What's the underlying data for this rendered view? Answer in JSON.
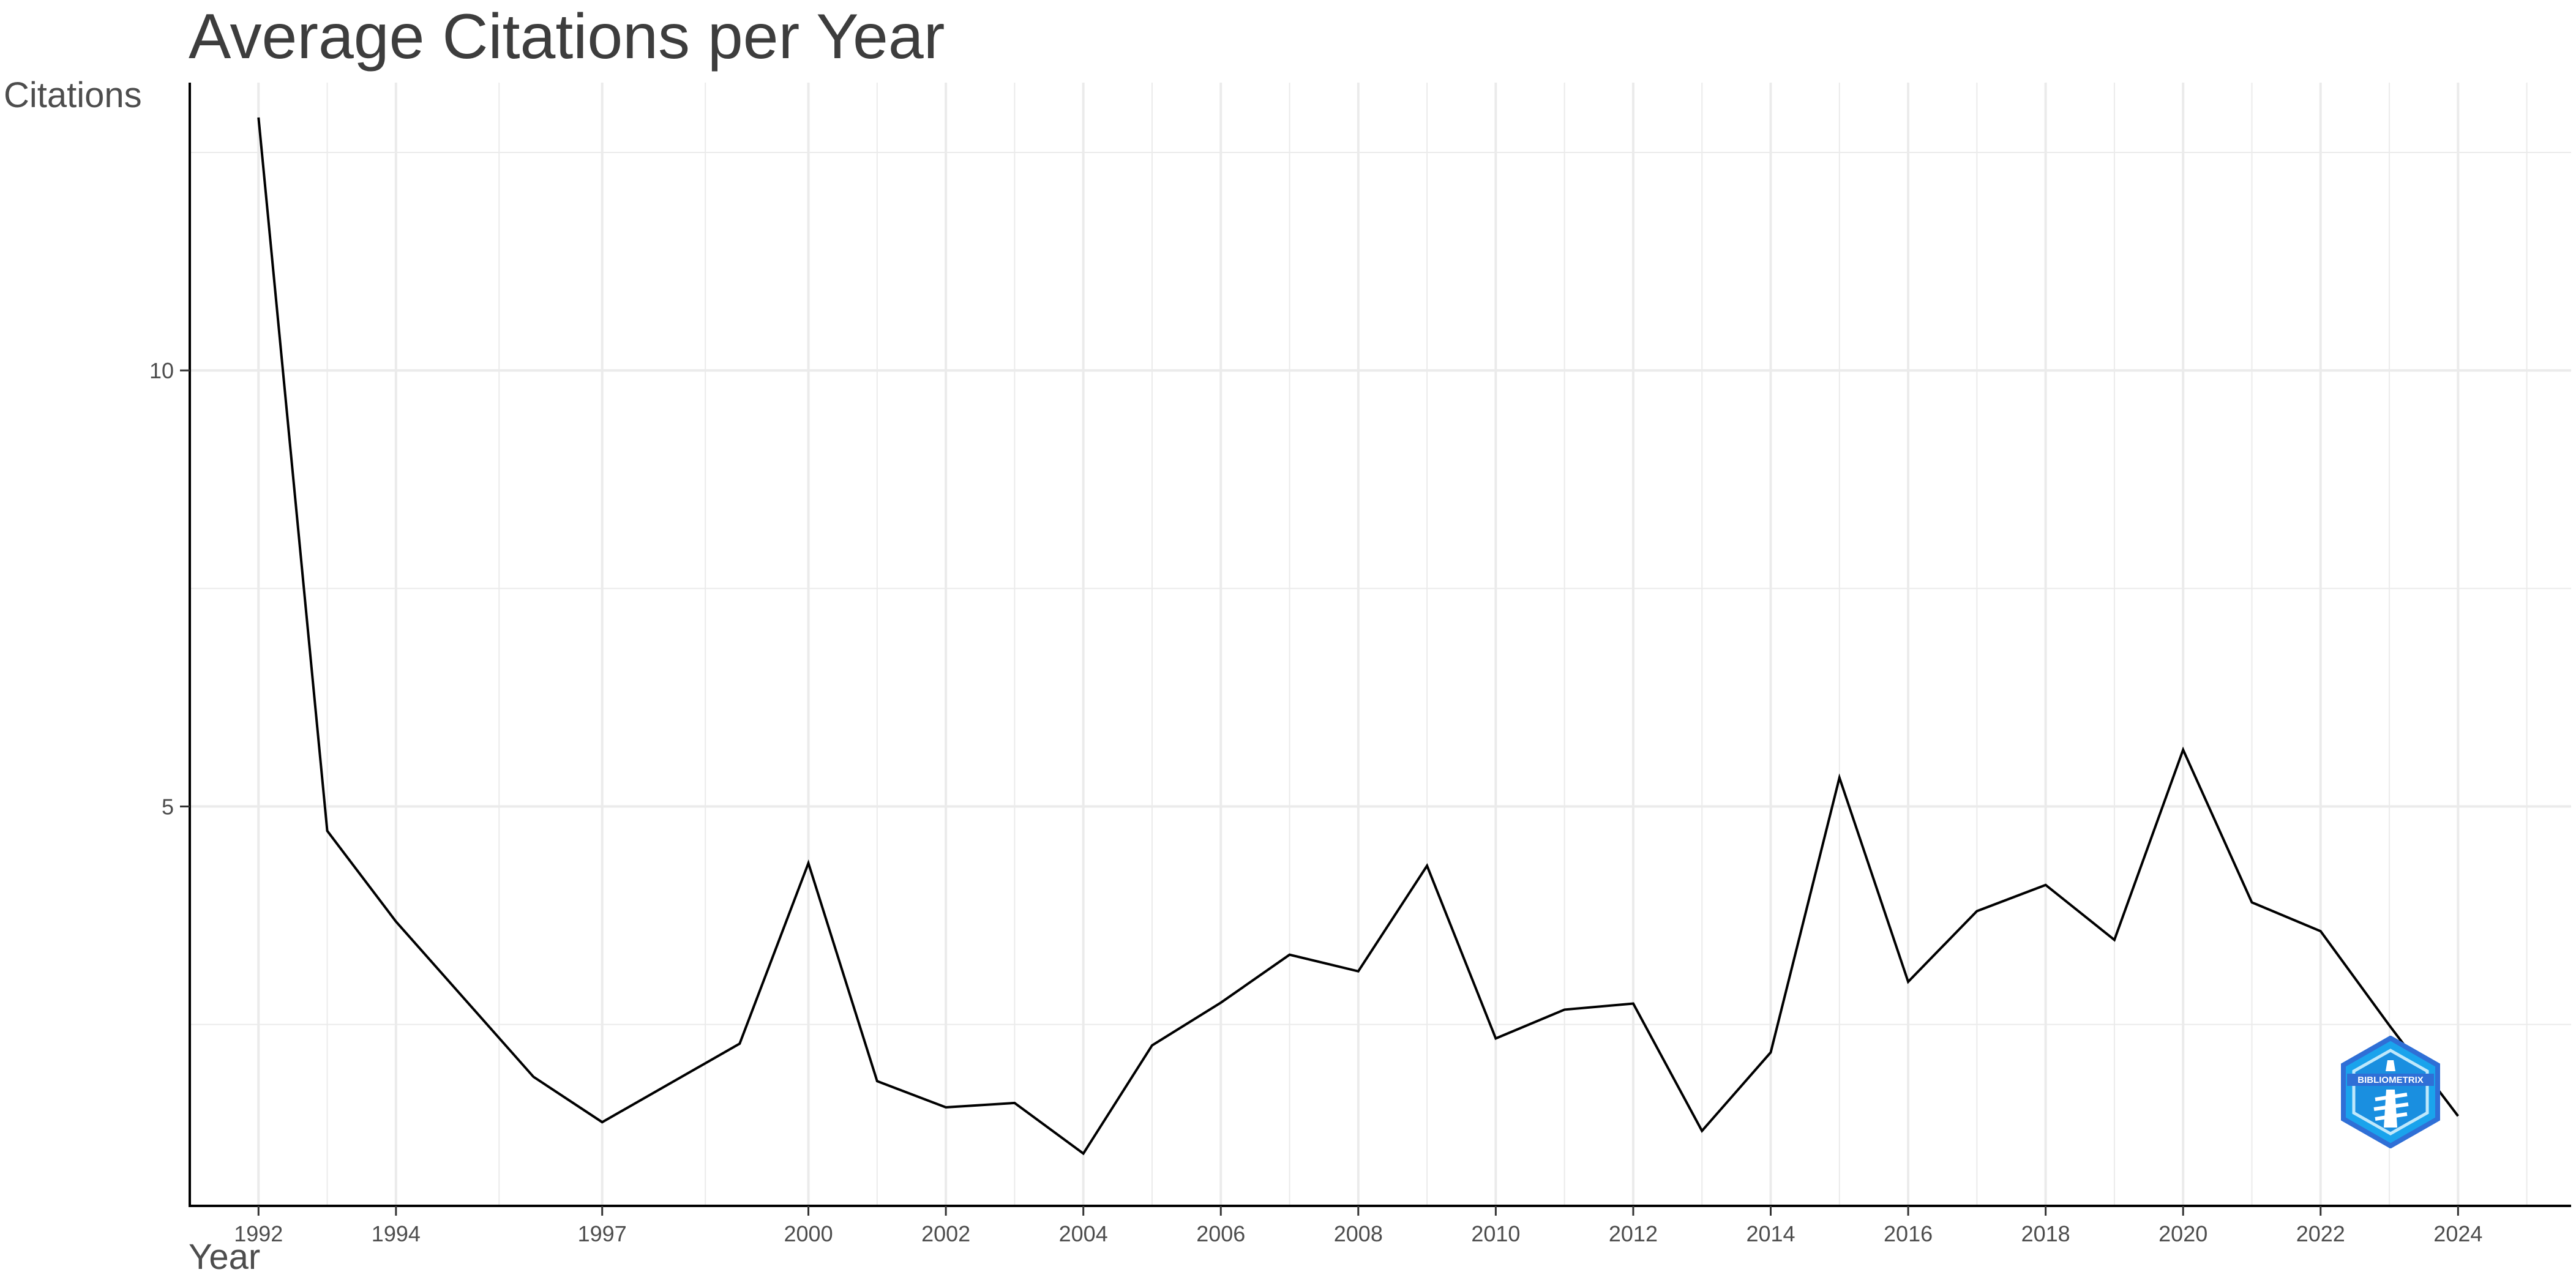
{
  "chart_data": {
    "type": "line",
    "title": "Average Citations per Year",
    "xlabel": "Year",
    "ylabel": "Citations",
    "x": [
      1992,
      1993,
      1994,
      1996,
      1997,
      1999,
      2000,
      2001,
      2002,
      2003,
      2004,
      2005,
      2006,
      2007,
      2008,
      2009,
      2010,
      2011,
      2012,
      2013,
      2014,
      2015,
      2016,
      2017,
      2018,
      2019,
      2020,
      2021,
      2022,
      2023,
      2024
    ],
    "series": [
      {
        "values": [
          12.9,
          4.72,
          3.68,
          1.9,
          1.38,
          2.28,
          4.35,
          1.85,
          1.55,
          1.6,
          1.02,
          2.26,
          2.75,
          3.3,
          3.11,
          4.32,
          2.34,
          2.67,
          2.74,
          1.28,
          2.18,
          5.33,
          2.99,
          3.8,
          4.1,
          3.47,
          5.65,
          3.9,
          3.57,
          2.49,
          1.45
        ]
      }
    ],
    "x_ticks": [
      "1992",
      "1994",
      "1997",
      "2000",
      "2002",
      "2004",
      "2006",
      "2008",
      "2010",
      "2012",
      "2014",
      "2016",
      "2018",
      "2020",
      "2022",
      "2024"
    ],
    "y_ticks": [
      "5",
      "10"
    ],
    "xlim": [
      1991,
      2025.6
    ],
    "ylim": [
      0.42,
      13.3
    ],
    "grid": true,
    "line_color": "#000000",
    "grid_color": "#ebebeb",
    "logo_colors": {
      "outer": "#2f6fd6",
      "inner": "#1aa3ec",
      "light": "#bfe8fb"
    }
  }
}
